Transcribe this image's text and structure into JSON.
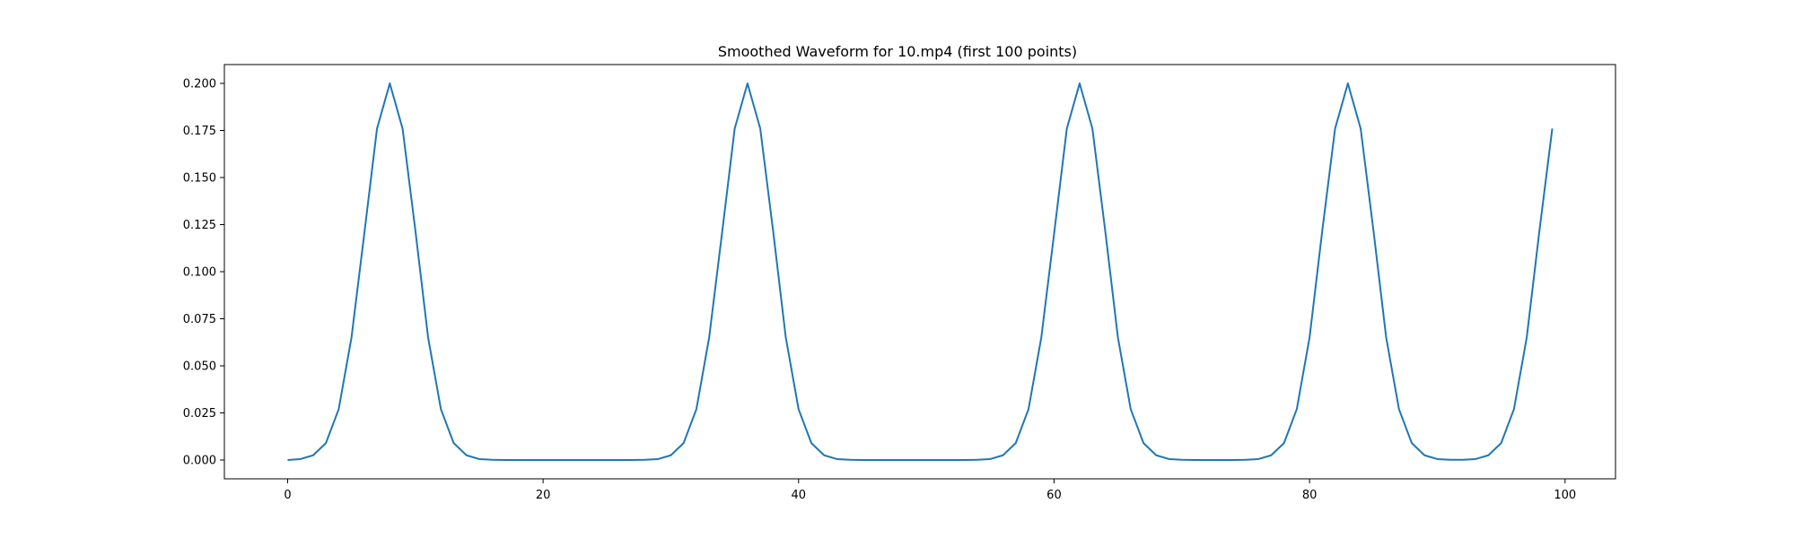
{
  "chart_data": {
    "type": "line",
    "title": "Smoothed Waveform for 10.mp4 (first 100 points)",
    "xlabel": "",
    "ylabel": "",
    "xlim": [
      -4.95,
      103.95
    ],
    "ylim": [
      -0.01,
      0.21
    ],
    "xticks": [
      0,
      20,
      40,
      60,
      80,
      100
    ],
    "xtick_labels": [
      "0",
      "20",
      "40",
      "60",
      "80",
      "100"
    ],
    "yticks": [
      0,
      0.025,
      0.05,
      0.075,
      0.1,
      0.125,
      0.15,
      0.175,
      0.2
    ],
    "ytick_labels": [
      "0.000",
      "0.025",
      "0.050",
      "0.075",
      "0.100",
      "0.125",
      "0.150",
      "0.175",
      "0.200"
    ],
    "grid": false,
    "series": [
      {
        "color": "#1f77b4",
        "x": [
          0,
          1,
          2,
          3,
          4,
          5,
          6,
          7,
          8,
          9,
          10,
          11,
          12,
          13,
          14,
          15,
          16,
          17,
          18,
          19,
          20,
          21,
          22,
          23,
          24,
          25,
          26,
          27,
          28,
          29,
          30,
          31,
          32,
          33,
          34,
          35,
          36,
          37,
          38,
          39,
          40,
          41,
          42,
          43,
          44,
          45,
          46,
          47,
          48,
          49,
          50,
          51,
          52,
          53,
          54,
          55,
          56,
          57,
          58,
          59,
          60,
          61,
          62,
          63,
          64,
          65,
          66,
          67,
          68,
          69,
          70,
          71,
          72,
          73,
          74,
          75,
          76,
          77,
          78,
          79,
          80,
          81,
          82,
          83,
          84,
          85,
          86,
          87,
          88,
          89,
          90,
          91,
          92,
          93,
          94,
          95,
          96,
          97,
          98,
          99
        ],
        "y": [
          0.0,
          0.0005,
          0.0025,
          0.009,
          0.027,
          0.065,
          0.12,
          0.176,
          0.2,
          0.176,
          0.122,
          0.065,
          0.027,
          0.009,
          0.0025,
          0.0005,
          0.0001,
          0.0,
          0.0,
          0.0,
          0.0,
          0.0,
          0.0,
          0.0,
          0.0,
          0.0,
          0.0,
          0.0,
          0.0001,
          0.0005,
          0.0025,
          0.009,
          0.027,
          0.065,
          0.12,
          0.176,
          0.2,
          0.176,
          0.122,
          0.065,
          0.027,
          0.009,
          0.0025,
          0.0005,
          0.0001,
          0.0,
          0.0,
          0.0,
          0.0,
          0.0,
          0.0,
          0.0,
          0.0,
          0.0,
          0.0001,
          0.0005,
          0.0025,
          0.009,
          0.027,
          0.065,
          0.12,
          0.176,
          0.2,
          0.176,
          0.122,
          0.065,
          0.027,
          0.009,
          0.0025,
          0.0005,
          0.0001,
          0.0,
          0.0,
          0.0,
          0.0,
          0.0001,
          0.0005,
          0.0025,
          0.009,
          0.027,
          0.065,
          0.122,
          0.176,
          0.2,
          0.176,
          0.122,
          0.065,
          0.027,
          0.009,
          0.0025,
          0.0005,
          0.0001,
          0.0001,
          0.0005,
          0.0025,
          0.009,
          0.027,
          0.065,
          0.122,
          0.176
        ]
      }
    ]
  }
}
